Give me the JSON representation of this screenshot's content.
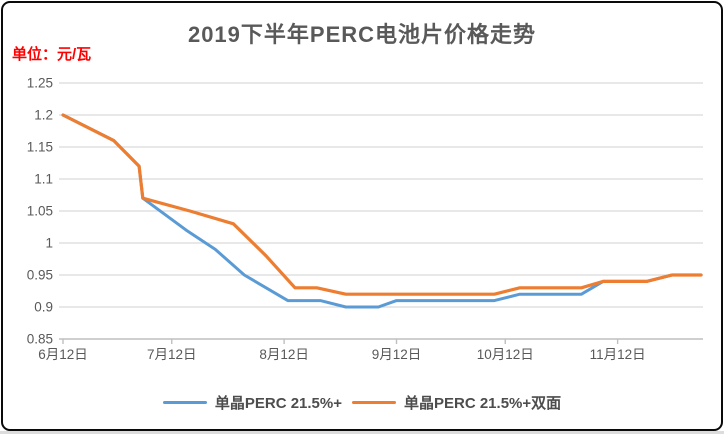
{
  "title": "2019下半年PERC电池片价格走势",
  "unit_label": "单位：元/瓦",
  "legend": [
    {
      "name": "单晶PERC 21.5%+",
      "color": "#5B9BD5"
    },
    {
      "name": "单晶PERC 21.5%+双面",
      "color": "#ED7D31"
    }
  ],
  "colors": {
    "series_blue": "#5B9BD5",
    "series_orange": "#ED7D31",
    "gridline": "#D9D9D9",
    "axis_line": "#BFBFBF",
    "axis_text": "#595959",
    "title_text": "#595959",
    "unit_text": "#FF0000"
  },
  "chart_data": {
    "type": "line",
    "title": "2019下半年PERC电池片价格走势",
    "unit": "元/瓦",
    "xlabel": "",
    "ylabel": "单位：元/瓦",
    "x_unit": "days after 6月12日 (2019)",
    "xlim": [
      0,
      176
    ],
    "ylim": [
      0.85,
      1.25
    ],
    "y_step": 0.05,
    "grid": true,
    "legend_position": "bottom",
    "y_ticks": [
      {
        "value": 1.25,
        "label": "1.25"
      },
      {
        "value": 1.2,
        "label": "1.2"
      },
      {
        "value": 1.15,
        "label": "1.15"
      },
      {
        "value": 1.1,
        "label": "1.1"
      },
      {
        "value": 1.05,
        "label": "1.05"
      },
      {
        "value": 1.0,
        "label": "1"
      },
      {
        "value": 0.95,
        "label": "0.95"
      },
      {
        "value": 0.9,
        "label": "0.9"
      },
      {
        "value": 0.85,
        "label": "0.85"
      }
    ],
    "x_ticks": [
      {
        "d": 0,
        "label": "6月12日"
      },
      {
        "d": 30,
        "label": "7月12日"
      },
      {
        "d": 61,
        "label": "8月12日"
      },
      {
        "d": 92,
        "label": "9月12日"
      },
      {
        "d": 122,
        "label": "10月12日"
      },
      {
        "d": 153,
        "label": "11月12日"
      }
    ],
    "series": [
      {
        "name": "单晶PERC 21.5%+",
        "color": "#5B9BD5",
        "width": 3,
        "points": [
          [
            0,
            1.2
          ],
          [
            14,
            1.16
          ],
          [
            21,
            1.12
          ],
          [
            22,
            1.07
          ],
          [
            34,
            1.02
          ],
          [
            42,
            0.99
          ],
          [
            50,
            0.95
          ],
          [
            62,
            0.91
          ],
          [
            71,
            0.91
          ],
          [
            78,
            0.9
          ],
          [
            87,
            0.9
          ],
          [
            92,
            0.91
          ],
          [
            119,
            0.91
          ],
          [
            126,
            0.92
          ],
          [
            143,
            0.92
          ],
          [
            149,
            0.94
          ],
          [
            161,
            0.94
          ],
          [
            168,
            0.95
          ],
          [
            176,
            0.95
          ]
        ]
      },
      {
        "name": "单晶PERC 21.5%+双面",
        "color": "#ED7D31",
        "width": 3.2,
        "points": [
          [
            0,
            1.2
          ],
          [
            14,
            1.16
          ],
          [
            21,
            1.12
          ],
          [
            22,
            1.07
          ],
          [
            35,
            1.05
          ],
          [
            47,
            1.03
          ],
          [
            56,
            0.98
          ],
          [
            64,
            0.93
          ],
          [
            70,
            0.93
          ],
          [
            78,
            0.92
          ],
          [
            119,
            0.92
          ],
          [
            126,
            0.93
          ],
          [
            143,
            0.93
          ],
          [
            149,
            0.94
          ],
          [
            161,
            0.94
          ],
          [
            168,
            0.95
          ],
          [
            176,
            0.95
          ]
        ]
      }
    ]
  }
}
